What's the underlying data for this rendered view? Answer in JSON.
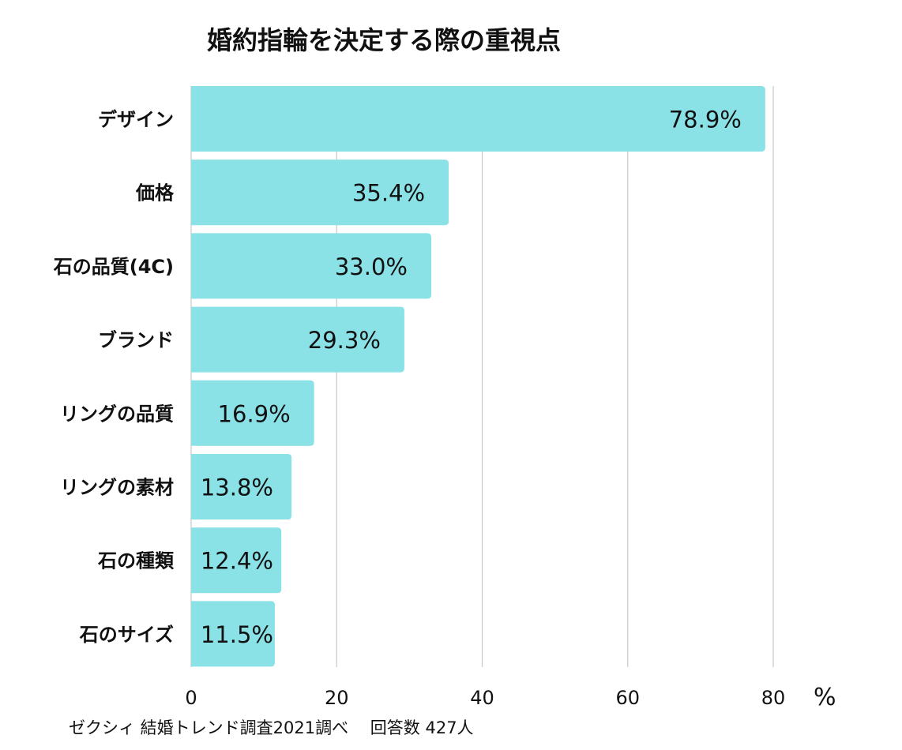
{
  "chart_data": {
    "type": "bar",
    "orientation": "horizontal",
    "title": "婚約指輪を決定する際の重視点",
    "categories": [
      "デザイン",
      "価格",
      "石の品質(4C)",
      "ブランド",
      "リングの品質",
      "リングの素材",
      "石の種類",
      "石のサイズ"
    ],
    "values": [
      78.9,
      35.4,
      33.0,
      29.3,
      16.9,
      13.8,
      12.4,
      11.5
    ],
    "value_labels": [
      "78.9%",
      "35.4%",
      "33.0%",
      "29.3%",
      "16.9%",
      "13.8%",
      "12.4%",
      "11.5%"
    ],
    "xlim": [
      0,
      80
    ],
    "xticks": [
      "0",
      "20",
      "40",
      "60",
      "80"
    ],
    "xlabel": "%",
    "grid": true,
    "bar_color": "#8ae1e6",
    "grid_color": "#c8c8c8"
  },
  "footnote": "ゼクシィ 結婚トレンド調査2021調べ　 回答数 427人"
}
